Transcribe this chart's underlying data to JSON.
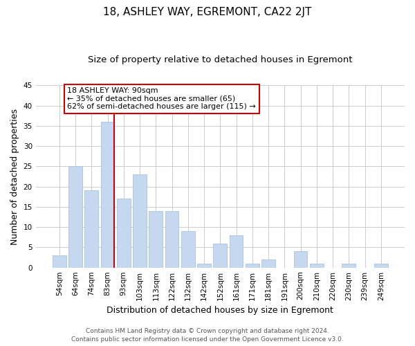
{
  "title": "18, ASHLEY WAY, EGREMONT, CA22 2JT",
  "subtitle": "Size of property relative to detached houses in Egremont",
  "xlabel": "Distribution of detached houses by size in Egremont",
  "ylabel": "Number of detached properties",
  "bar_labels": [
    "54sqm",
    "64sqm",
    "74sqm",
    "83sqm",
    "93sqm",
    "103sqm",
    "113sqm",
    "122sqm",
    "132sqm",
    "142sqm",
    "152sqm",
    "161sqm",
    "171sqm",
    "181sqm",
    "191sqm",
    "200sqm",
    "210sqm",
    "220sqm",
    "230sqm",
    "239sqm",
    "249sqm"
  ],
  "bar_values": [
    3,
    25,
    19,
    36,
    17,
    23,
    14,
    14,
    9,
    1,
    6,
    8,
    1,
    2,
    0,
    4,
    1,
    0,
    1,
    0,
    1
  ],
  "bar_color": "#c5d8f0",
  "bar_edge_color": "#a8c4e0",
  "vline_color": "#cc0000",
  "vline_index": 3,
  "annotation_line1": "18 ASHLEY WAY: 90sqm",
  "annotation_line2": "← 35% of detached houses are smaller (65)",
  "annotation_line3": "62% of semi-detached houses are larger (115) →",
  "annotation_box_color": "#ffffff",
  "annotation_box_edge": "#cc0000",
  "ylim": [
    0,
    45
  ],
  "yticks": [
    0,
    5,
    10,
    15,
    20,
    25,
    30,
    35,
    40,
    45
  ],
  "footer_line1": "Contains HM Land Registry data © Crown copyright and database right 2024.",
  "footer_line2": "Contains public sector information licensed under the Open Government Licence v3.0.",
  "bg_color": "#ffffff",
  "grid_color": "#cccccc",
  "title_fontsize": 11,
  "subtitle_fontsize": 9.5,
  "axis_label_fontsize": 9,
  "tick_fontsize": 7.5,
  "annotation_fontsize": 8,
  "footer_fontsize": 6.5
}
